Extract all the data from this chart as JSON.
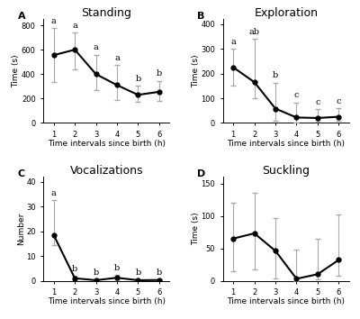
{
  "standing": {
    "x": [
      1,
      2,
      3,
      4,
      5,
      6
    ],
    "y": [
      555,
      600,
      400,
      310,
      230,
      255
    ],
    "yerr_low": [
      220,
      160,
      130,
      120,
      55,
      75
    ],
    "yerr_high": [
      220,
      140,
      160,
      165,
      75,
      90
    ],
    "labels": [
      "a",
      "a",
      "a",
      "a",
      "b",
      "b"
    ],
    "label_xoffset": [
      0,
      0,
      0,
      0,
      0,
      0
    ],
    "title": "Standing",
    "ylabel": "Time (s)",
    "ylim": [
      0,
      850
    ],
    "yticks": [
      0,
      200,
      400,
      600,
      800
    ],
    "panel": "A"
  },
  "exploration": {
    "x": [
      1,
      2,
      3,
      4,
      5,
      6
    ],
    "y": [
      225,
      165,
      58,
      22,
      20,
      25
    ],
    "yerr_low": [
      75,
      65,
      50,
      20,
      15,
      15
    ],
    "yerr_high": [
      75,
      175,
      105,
      60,
      35,
      35
    ],
    "labels": [
      "a",
      "ab",
      "b",
      "c",
      "c",
      "c"
    ],
    "label_xoffset": [
      0,
      0,
      0,
      0,
      0,
      0
    ],
    "title": "Exploration",
    "ylabel": "Time (s)",
    "ylim": [
      0,
      420
    ],
    "yticks": [
      0,
      100,
      200,
      300,
      400
    ],
    "panel": "B"
  },
  "vocalizations": {
    "x": [
      1,
      2,
      3,
      4,
      5,
      6
    ],
    "y": [
      18.5,
      1.0,
      0.2,
      1.2,
      0.2,
      0.3
    ],
    "yerr_low": [
      4,
      0.9,
      0.2,
      1.1,
      0.2,
      0.2
    ],
    "yerr_high": [
      14,
      0.9,
      0.2,
      1.1,
      0.2,
      0.2
    ],
    "labels": [
      "a",
      "b",
      "b",
      "b",
      "b",
      "b"
    ],
    "label_xoffset": [
      0,
      0,
      0,
      0,
      0,
      0
    ],
    "title": "Vocalizations",
    "ylabel": "Number",
    "ylim": [
      0,
      42
    ],
    "yticks": [
      0,
      10,
      20,
      30,
      40
    ],
    "panel": "C"
  },
  "suckling": {
    "x": [
      1,
      2,
      3,
      4,
      5,
      6
    ],
    "y": [
      65,
      73,
      46,
      3,
      10,
      32
    ],
    "yerr_low": [
      50,
      55,
      42,
      3,
      8,
      25
    ],
    "yerr_high": [
      55,
      62,
      50,
      45,
      55,
      70
    ],
    "labels": [
      "",
      "",
      "",
      "",
      "",
      ""
    ],
    "label_xoffset": [
      0,
      0,
      0,
      0,
      0,
      0
    ],
    "title": "Suckling",
    "ylabel": "Time (s)",
    "ylim": [
      0,
      160
    ],
    "yticks": [
      0,
      50,
      100,
      150
    ],
    "panel": "D"
  },
  "xlabel": "Time intervals since birth (h)",
  "line_color": "black",
  "marker": "o",
  "markersize": 3.5,
  "linewidth": 1.5,
  "capsize": 2,
  "ecolor": "#aaaaaa",
  "elinewidth": 0.8,
  "label_fontsize": 6.5,
  "tick_fontsize": 6,
  "title_fontsize": 9,
  "stat_label_fontsize": 7,
  "panel_label_fontsize": 8,
  "bg_color": "white"
}
